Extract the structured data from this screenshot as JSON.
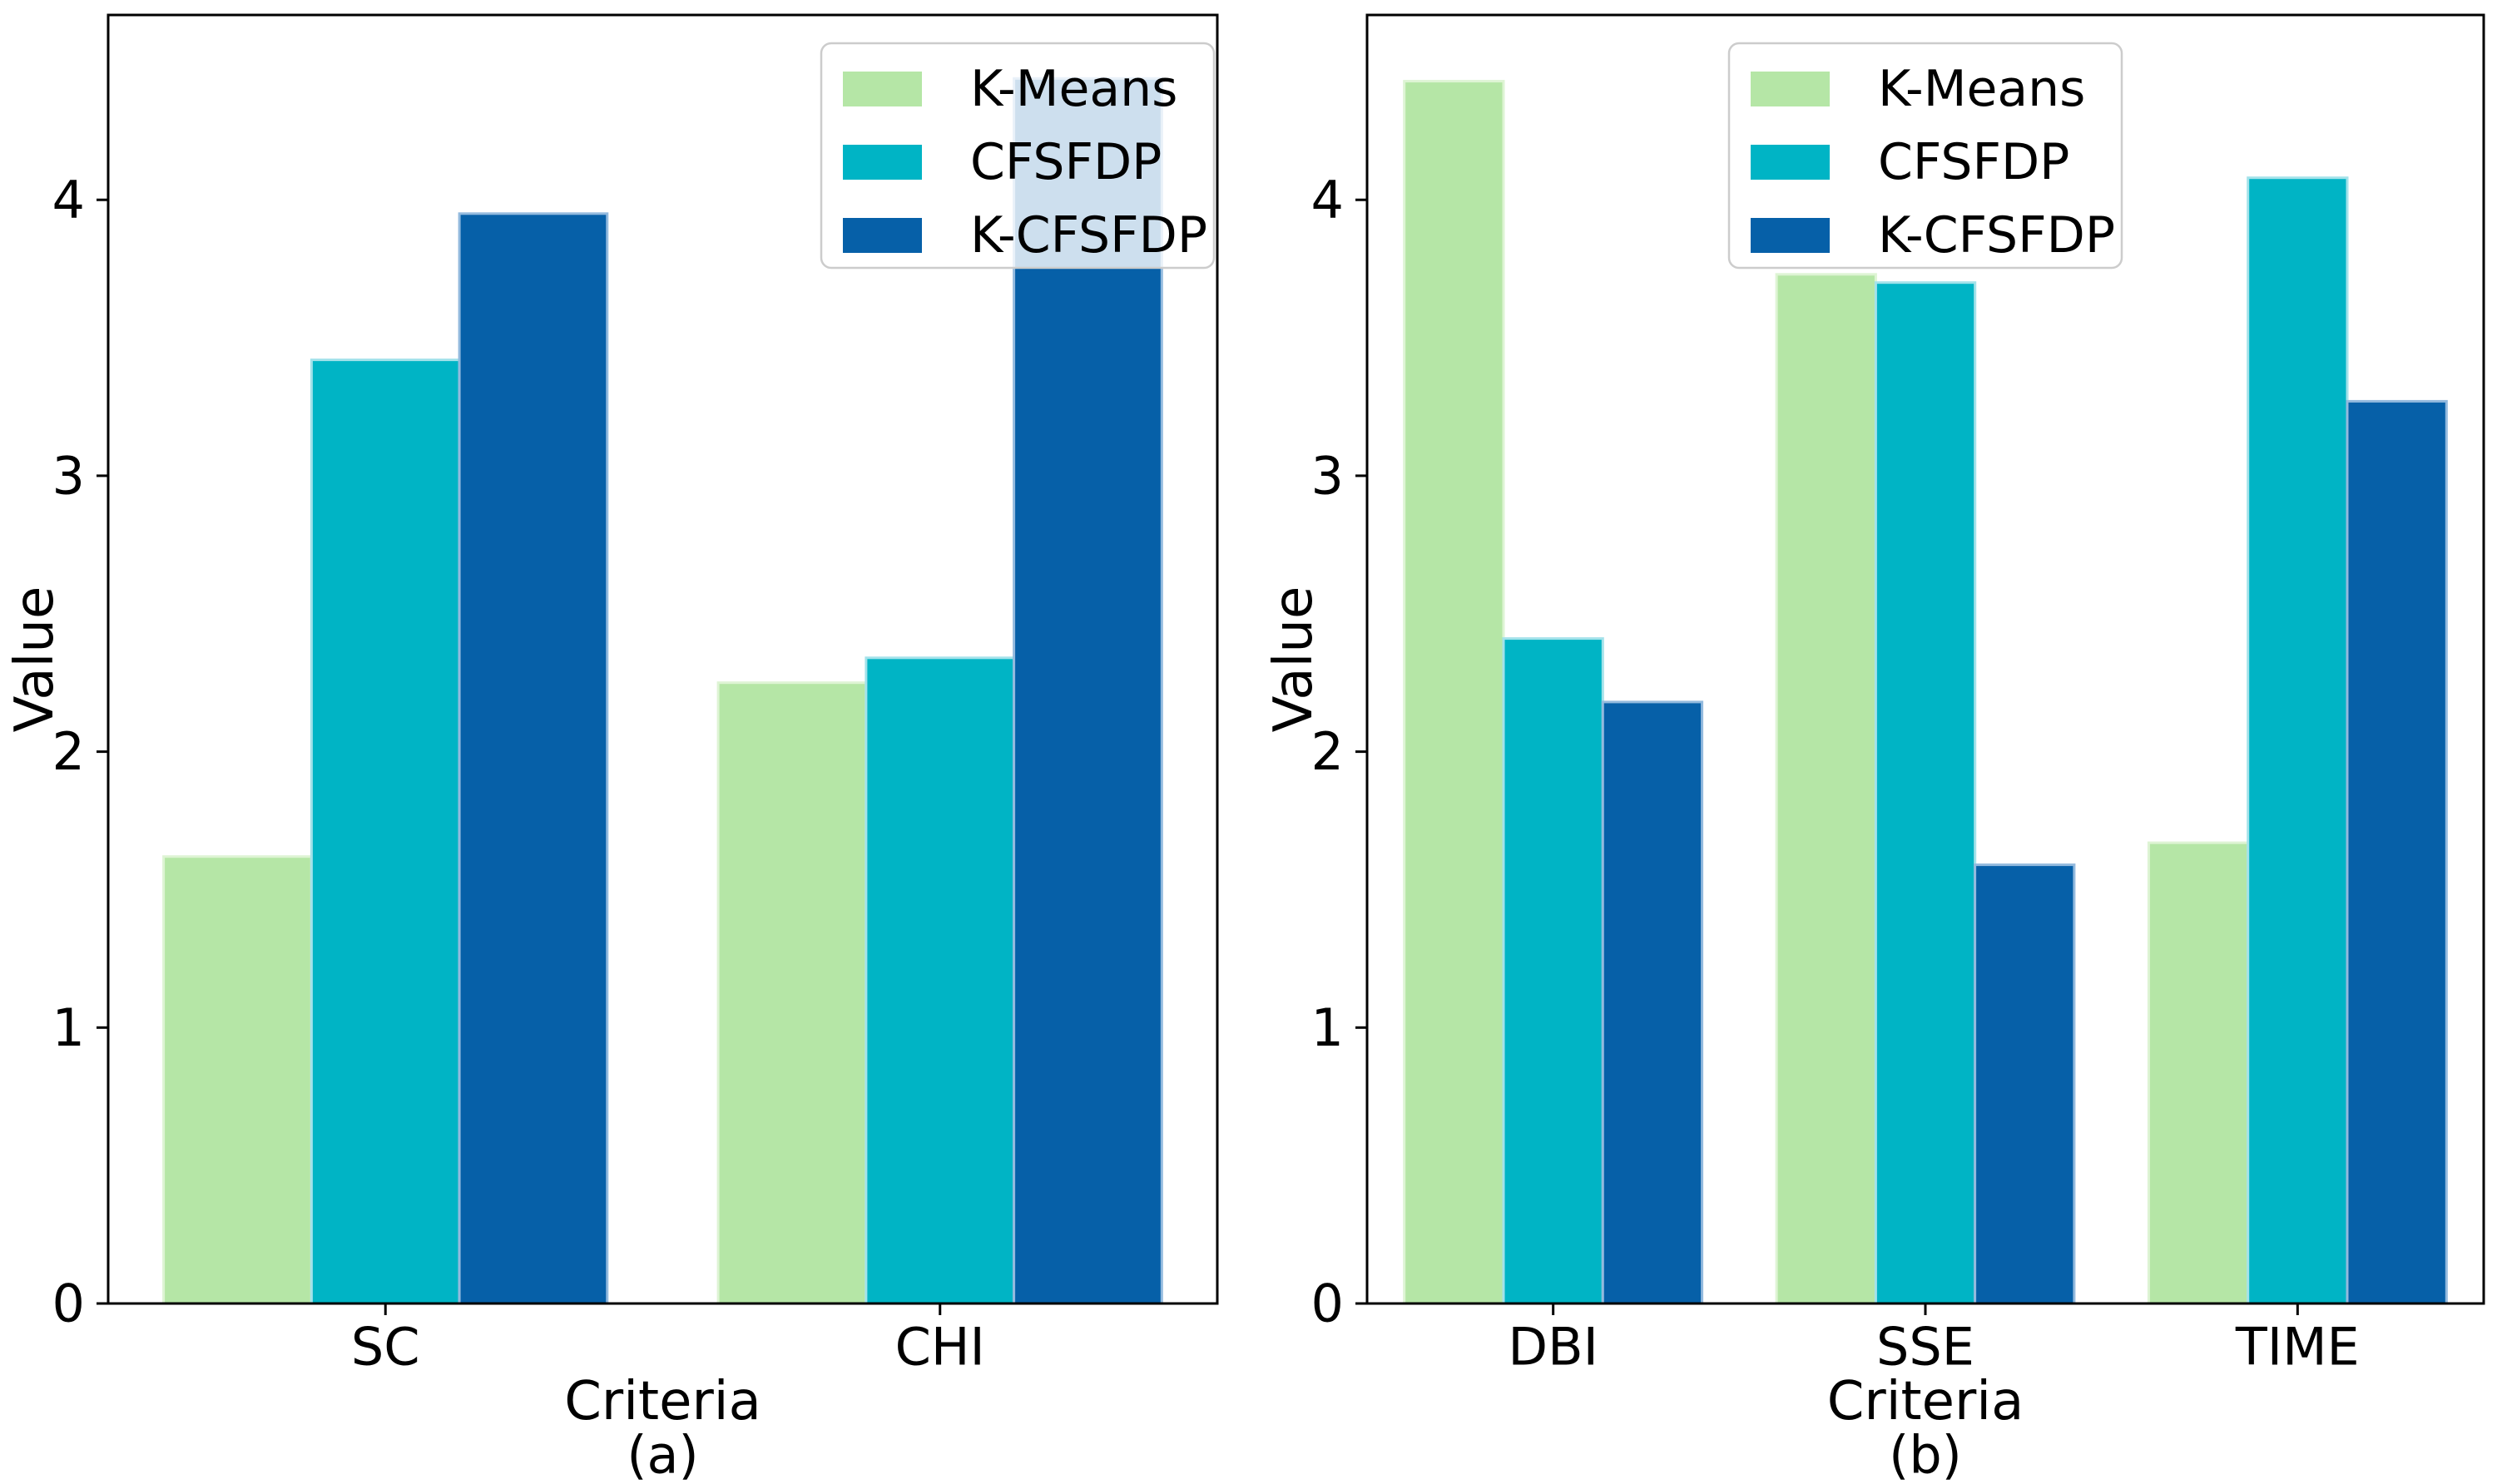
{
  "figure": {
    "background": "#ffffff",
    "description": "Two grouped bar charts comparing clustering algorithms across evaluation criteria"
  },
  "legend": {
    "labels": [
      "K-Means",
      "CFSFDP",
      "K-CFSFDP"
    ],
    "frame_color": "#cccccc",
    "frame_fill": "rgba(255,255,255,0.8)"
  },
  "series_colors": {
    "K-Means": "#b5e6a6",
    "CFSFDP": "#00b4c5",
    "K-CFSFDP": "#0660a8"
  },
  "series_edge_colors": {
    "K-Means": "#def4d4",
    "CFSFDP": "#a3e2ea",
    "K-CFSFDP": "#93bade"
  },
  "chart_data": [
    {
      "type": "bar",
      "sublabel": "(a)",
      "xlabel": "Criteria",
      "ylabel": "Value",
      "categories": [
        "SC",
        "CHI"
      ],
      "series": [
        {
          "name": "K-Means",
          "color": "#b5e6a6",
          "values": [
            1.62,
            2.25
          ]
        },
        {
          "name": "CFSFDP",
          "color": "#00b4c5",
          "values": [
            3.42,
            2.34
          ]
        },
        {
          "name": "K-CFSFDP",
          "color": "#0660a8",
          "values": [
            3.95,
            4.44
          ]
        }
      ],
      "ylim": [
        0,
        4.67
      ],
      "yticks": [
        0,
        1,
        2,
        3,
        4
      ],
      "grid": false,
      "legend_loc": "upper right"
    },
    {
      "type": "bar",
      "sublabel": "(b)",
      "xlabel": "Criteria",
      "ylabel": "Value",
      "categories": [
        "DBI",
        "SSE",
        "TIME"
      ],
      "series": [
        {
          "name": "K-Means",
          "color": "#b5e6a6",
          "values": [
            4.43,
            3.73,
            1.67
          ]
        },
        {
          "name": "CFSFDP",
          "color": "#00b4c5",
          "values": [
            2.41,
            3.7,
            4.08
          ]
        },
        {
          "name": "K-CFSFDP",
          "color": "#0660a8",
          "values": [
            2.18,
            1.59,
            3.27
          ]
        }
      ],
      "ylim": [
        0,
        4.67
      ],
      "yticks": [
        0,
        1,
        2,
        3,
        4
      ],
      "grid": false,
      "legend_loc": "upper center"
    }
  ]
}
